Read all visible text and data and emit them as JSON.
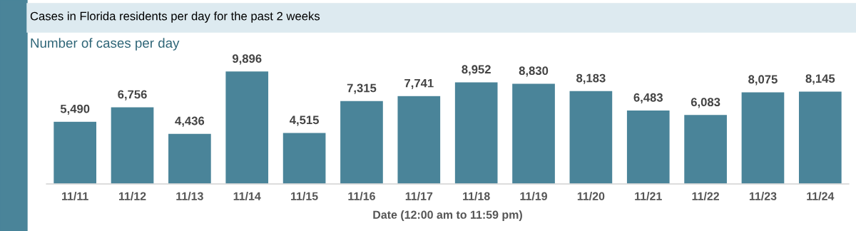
{
  "chart_data": {
    "type": "bar",
    "title": "Cases in Florida residents per day for the past 2 weeks",
    "subtitle": "Number of cases per day",
    "xlabel": "Date (12:00 am to 11:59 pm)",
    "categories": [
      "11/11",
      "11/12",
      "11/13",
      "11/14",
      "11/15",
      "11/16",
      "11/17",
      "11/18",
      "11/19",
      "11/20",
      "11/21",
      "11/22",
      "11/23",
      "11/24"
    ],
    "values": [
      5490,
      6756,
      4436,
      9896,
      4515,
      7315,
      7741,
      8952,
      8830,
      8183,
      6483,
      6083,
      8075,
      8145
    ],
    "value_labels": [
      "5,490",
      "6,756",
      "4,436",
      "9,896",
      "4,515",
      "7,315",
      "7,741",
      "8,952",
      "8,830",
      "8,183",
      "6,483",
      "6,083",
      "8,075",
      "8,145"
    ],
    "color": "#4a8499",
    "grid": false,
    "legend": false
  }
}
